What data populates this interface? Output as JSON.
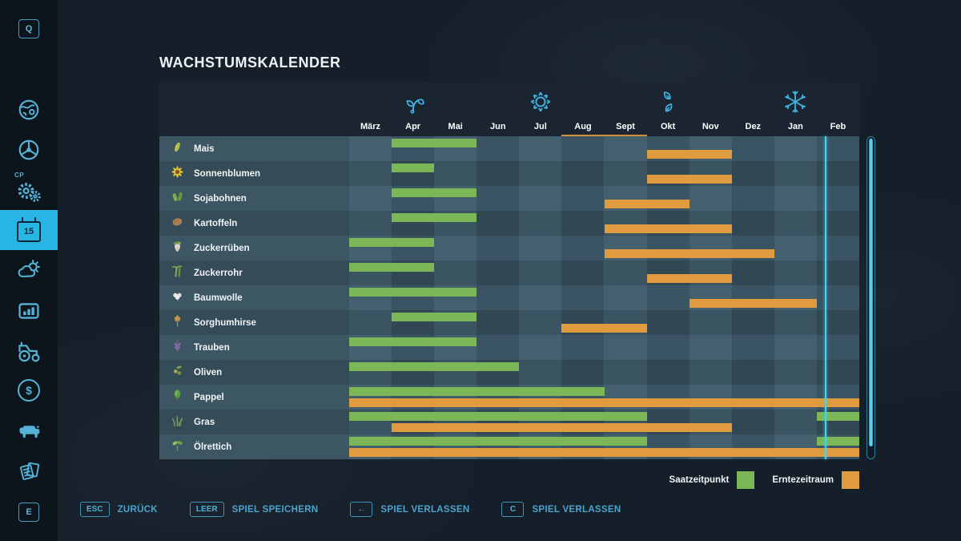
{
  "title": "WACHSTUMSKALENDER",
  "sidebar": {
    "key_top": "Q",
    "key_bottom": "E",
    "cp_label": "CP",
    "calendar_day": "15",
    "dollar_glyph": "$",
    "items": [
      {
        "icon": "q-key-icon"
      },
      {
        "icon": "globe-icon"
      },
      {
        "icon": "steering-wheel-icon"
      },
      {
        "icon": "courseplay-gears-icon"
      },
      {
        "icon": "calendar-icon",
        "active": true
      },
      {
        "icon": "weather-icon"
      },
      {
        "icon": "stats-icon"
      },
      {
        "icon": "tractor-icon"
      },
      {
        "icon": "finance-icon"
      },
      {
        "icon": "animals-icon"
      },
      {
        "icon": "contracts-icon"
      },
      {
        "icon": "e-key-icon"
      }
    ]
  },
  "calendar": {
    "months": [
      "März",
      "Apr",
      "Mai",
      "Jun",
      "Jul",
      "Aug",
      "Sept",
      "Okt",
      "Nov",
      "Dez",
      "Jan",
      "Feb"
    ],
    "seasons": [
      {
        "icon": "sprout-icon",
        "month_index": 1
      },
      {
        "icon": "sun-icon",
        "month_index": 4
      },
      {
        "icon": "autumn-leaves-icon",
        "month_index": 7
      },
      {
        "icon": "snowflake-icon",
        "month_index": 10
      }
    ],
    "current_period_underline": {
      "start_month_index": 5,
      "end_month_index": 6
    },
    "current_time_position_months": 11.19,
    "rows": [
      {
        "name": "Mais",
        "icon": "corn-icon",
        "sow": [
          [
            1,
            2
          ]
        ],
        "harvest": [
          [
            7,
            8
          ]
        ]
      },
      {
        "name": "Sonnenblumen",
        "icon": "sunflower-icon",
        "sow": [
          [
            1,
            1
          ]
        ],
        "harvest": [
          [
            7,
            8
          ]
        ]
      },
      {
        "name": "Sojabohnen",
        "icon": "soybean-icon",
        "sow": [
          [
            1,
            2
          ]
        ],
        "harvest": [
          [
            6,
            7
          ]
        ]
      },
      {
        "name": "Kartoffeln",
        "icon": "potato-icon",
        "sow": [
          [
            1,
            2
          ]
        ],
        "harvest": [
          [
            6,
            8
          ]
        ]
      },
      {
        "name": "Zuckerrüben",
        "icon": "sugar-beet-icon",
        "sow": [
          [
            0,
            1
          ]
        ],
        "harvest": [
          [
            6,
            9
          ]
        ]
      },
      {
        "name": "Zuckerrohr",
        "icon": "sugarcane-icon",
        "sow": [
          [
            0,
            1
          ]
        ],
        "harvest": [
          [
            7,
            8
          ]
        ]
      },
      {
        "name": "Baumwolle",
        "icon": "cotton-icon",
        "sow": [
          [
            0,
            2
          ]
        ],
        "harvest": [
          [
            8,
            10
          ]
        ]
      },
      {
        "name": "Sorghumhirse",
        "icon": "sorghum-icon",
        "sow": [
          [
            1,
            2
          ]
        ],
        "harvest": [
          [
            5,
            6
          ]
        ]
      },
      {
        "name": "Trauben",
        "icon": "grapes-icon",
        "sow": [
          [
            0,
            2
          ]
        ],
        "harvest": []
      },
      {
        "name": "Oliven",
        "icon": "olive-icon",
        "sow": [
          [
            0,
            3
          ]
        ],
        "harvest": []
      },
      {
        "name": "Pappel",
        "icon": "poplar-icon",
        "sow": [
          [
            0,
            5
          ]
        ],
        "harvest": [
          [
            0,
            11
          ]
        ]
      },
      {
        "name": "Gras",
        "icon": "grass-icon",
        "sow": [
          [
            0,
            6
          ],
          [
            11,
            11
          ]
        ],
        "harvest": [
          [
            1,
            8
          ]
        ]
      },
      {
        "name": "Ölrettich",
        "icon": "oilseed-radish-icon",
        "sow": [
          [
            0,
            6
          ],
          [
            11,
            11
          ]
        ],
        "harvest": [
          [
            0,
            11
          ]
        ]
      }
    ]
  },
  "legend": [
    {
      "label": "Saatzeitpunkt",
      "color": "#7bb757"
    },
    {
      "label": "Erntezeitraum",
      "color": "#e09b3e"
    }
  ],
  "footer": {
    "buttons": [
      {
        "key": "ESC",
        "label": "ZURÜCK"
      },
      {
        "key": "LEER",
        "label": "SPIEL SPEICHERN"
      },
      {
        "key": "←",
        "label": "SPIEL VERLASSEN"
      },
      {
        "key": "C",
        "label": "SPIEL VERLASSEN"
      }
    ]
  },
  "colors": {
    "accent": "#29b6e4",
    "sow_green": "#7bb757",
    "harvest_orange": "#e09b3e",
    "timeline_cyan": "#3fd6ef",
    "header_underline": "#cf8f3a"
  }
}
